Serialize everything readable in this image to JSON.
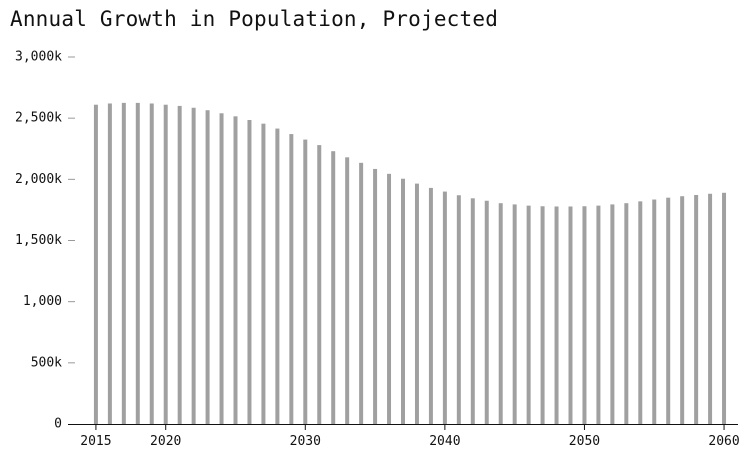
{
  "chart_data": {
    "type": "bar",
    "title": "Annual Growth in Population, Projected",
    "xlabel": "",
    "ylabel": "",
    "x": [
      2015,
      2016,
      2017,
      2018,
      2019,
      2020,
      2021,
      2022,
      2023,
      2024,
      2025,
      2026,
      2027,
      2028,
      2029,
      2030,
      2031,
      2032,
      2033,
      2034,
      2035,
      2036,
      2037,
      2038,
      2039,
      2040,
      2041,
      2042,
      2043,
      2044,
      2045,
      2046,
      2047,
      2048,
      2049,
      2050,
      2051,
      2052,
      2053,
      2054,
      2055,
      2056,
      2057,
      2058,
      2059,
      2060
    ],
    "values": [
      2610,
      2620,
      2625,
      2625,
      2620,
      2610,
      2600,
      2585,
      2565,
      2540,
      2515,
      2485,
      2455,
      2415,
      2370,
      2325,
      2280,
      2230,
      2180,
      2135,
      2085,
      2045,
      2005,
      1965,
      1930,
      1900,
      1870,
      1845,
      1825,
      1805,
      1795,
      1785,
      1780,
      1778,
      1778,
      1780,
      1785,
      1795,
      1805,
      1820,
      1835,
      1850,
      1862,
      1872,
      1882,
      1890
    ],
    "ylim": [
      0,
      3000
    ],
    "xlim": [
      2013,
      2061
    ],
    "yticks": [
      {
        "value": 0,
        "label": "0"
      },
      {
        "value": 500,
        "label": "500k"
      },
      {
        "value": 1000,
        "label": "1,000"
      },
      {
        "value": 1500,
        "label": "1,500k"
      },
      {
        "value": 2000,
        "label": "2,000k"
      },
      {
        "value": 2500,
        "label": "2,500k"
      },
      {
        "value": 3000,
        "label": "3,000k"
      }
    ],
    "xticks": [
      {
        "value": 2015,
        "label": "2015"
      },
      {
        "value": 2020,
        "label": "2020"
      },
      {
        "value": 2030,
        "label": "2030"
      },
      {
        "value": 2040,
        "label": "2040"
      },
      {
        "value": 2050,
        "label": "2050"
      },
      {
        "value": 2060,
        "label": "2060"
      }
    ],
    "grid": false,
    "colors": {
      "bar": "#a0a0a0",
      "axis": "#111111",
      "tick": "#999999"
    }
  }
}
